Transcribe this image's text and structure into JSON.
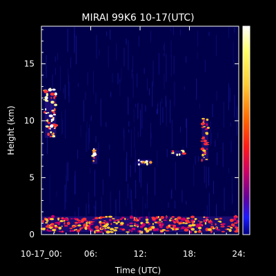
{
  "chart_data": {
    "type": "heatmap",
    "title": "MIRAI 99K6 10-17(UTC)",
    "xlabel": "Time (UTC)",
    "ylabel": "Height (km)",
    "xlim": [
      0,
      24
    ],
    "ylim": [
      0,
      18.3
    ],
    "x_ticks": [
      {
        "value": 0,
        "label": "10-17_00:"
      },
      {
        "value": 6,
        "label": "06:"
      },
      {
        "value": 12,
        "label": "12:"
      },
      {
        "value": 18,
        "label": "18:"
      },
      {
        "value": 24,
        "label": "24:"
      }
    ],
    "y_ticks": [
      {
        "value": 0,
        "label": "0"
      },
      {
        "value": 5,
        "label": "5"
      },
      {
        "value": 10,
        "label": "10"
      },
      {
        "value": 15,
        "label": "15"
      }
    ],
    "colorbar": {
      "placement": "right",
      "colors": [
        "#ffffff",
        "#ffff66",
        "#ffcc33",
        "#ff6600",
        "#ff1a1a",
        "#cc0066",
        "#660099",
        "#1a1aff",
        "#000080"
      ]
    },
    "background_color": "#00004a",
    "noise_color": "#1a1aaa",
    "features": [
      {
        "type": "upper-level cloud",
        "x_start": 0.4,
        "x_end": 1.8,
        "z_bottom": 8.5,
        "z_top": 12.8,
        "intensity": "high"
      },
      {
        "type": "mid-level cloud",
        "x_start": 6.2,
        "x_end": 6.8,
        "z_bottom": 6.2,
        "z_top": 7.6,
        "intensity": "high"
      },
      {
        "type": "mid-level cloud",
        "x_start": 11.6,
        "x_end": 13.4,
        "z_bottom": 6.1,
        "z_top": 6.6,
        "intensity": "high"
      },
      {
        "type": "mid-level cloud",
        "x_start": 15.7,
        "x_end": 17.5,
        "z_bottom": 7.0,
        "z_top": 7.4,
        "intensity": "high"
      },
      {
        "type": "upper-level cloud",
        "x_start": 19.5,
        "x_end": 20.3,
        "z_bottom": 6.5,
        "z_top": 10.2,
        "intensity": "medium"
      },
      {
        "type": "boundary-layer cloud",
        "x_start": 0.0,
        "x_end": 24.0,
        "z_bottom": 0.2,
        "z_top": 1.6,
        "intensity": "medium"
      }
    ]
  }
}
